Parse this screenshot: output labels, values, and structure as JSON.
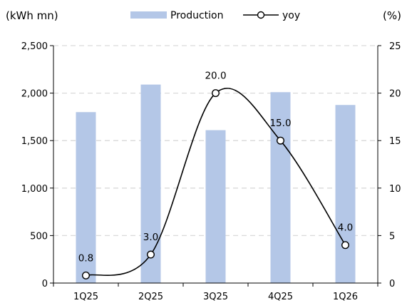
{
  "chart_data": {
    "type": "bar",
    "categories": [
      "1Q25",
      "2Q25",
      "3Q25",
      "4Q25",
      "1Q26"
    ],
    "series": [
      {
        "name": "Production",
        "kind": "bar",
        "axis": "left",
        "values": [
          1800,
          2090,
          1610,
          2010,
          1875
        ]
      },
      {
        "name": "yoy",
        "kind": "line",
        "axis": "right",
        "values": [
          0.8,
          3.0,
          20.0,
          15.0,
          4.0
        ],
        "data_labels": [
          "0.8",
          "3.0",
          "20.0",
          "15.0",
          "4.0"
        ]
      }
    ],
    "left_axis": {
      "unit_label": "(kWh mn)",
      "range": [
        0,
        2500
      ],
      "ticks": [
        0,
        500,
        1000,
        1500,
        2000,
        2500
      ],
      "tick_labels": [
        "0",
        "500",
        "1,000",
        "1,500",
        "2,000",
        "2,500"
      ]
    },
    "right_axis": {
      "unit_label": "(%)",
      "range": [
        0,
        25
      ],
      "ticks": [
        0,
        5,
        10,
        15,
        20,
        25
      ],
      "tick_labels": [
        "0",
        "5",
        "10",
        "15",
        "20",
        "25"
      ]
    },
    "grid": true,
    "legend_placement": "top",
    "colors": {
      "bar": "#b4c7e7",
      "line": "#000000",
      "marker_fill": "#ffffff",
      "grid": "#d9d9d9"
    }
  }
}
